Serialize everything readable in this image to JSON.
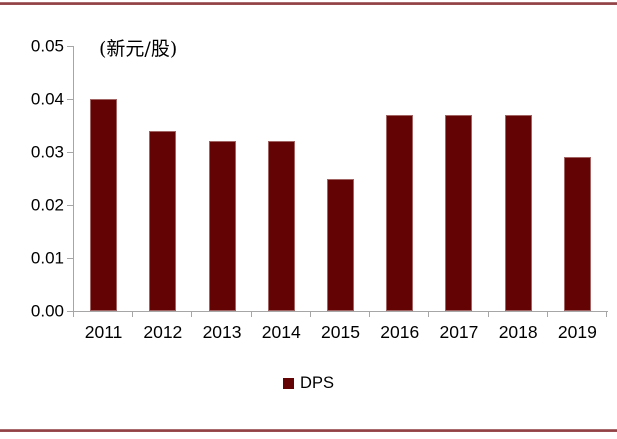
{
  "labels": {
    "unit": "(新元/股)"
  },
  "colors": {
    "bar": "#640303",
    "axis": "#a6a6a6",
    "frame_rule": "#8c383b",
    "text": "#000000"
  },
  "chart_data": {
    "type": "bar",
    "title": "",
    "xlabel": "",
    "ylabel": "(新元/股)",
    "categories": [
      "2011",
      "2012",
      "2013",
      "2014",
      "2015",
      "2016",
      "2017",
      "2018",
      "2019"
    ],
    "series": [
      {
        "name": "DPS",
        "values": [
          0.04,
          0.034,
          0.032,
          0.032,
          0.025,
          0.037,
          0.037,
          0.037,
          0.029
        ]
      }
    ],
    "ylim": [
      0,
      0.05
    ],
    "yticks": [
      0,
      0.01,
      0.02,
      0.03,
      0.04,
      0.05
    ],
    "ytick_labels": [
      "0.00",
      "0.01",
      "0.02",
      "0.03",
      "0.04",
      "0.05"
    ],
    "grid": false,
    "legend_position": "bottom"
  }
}
